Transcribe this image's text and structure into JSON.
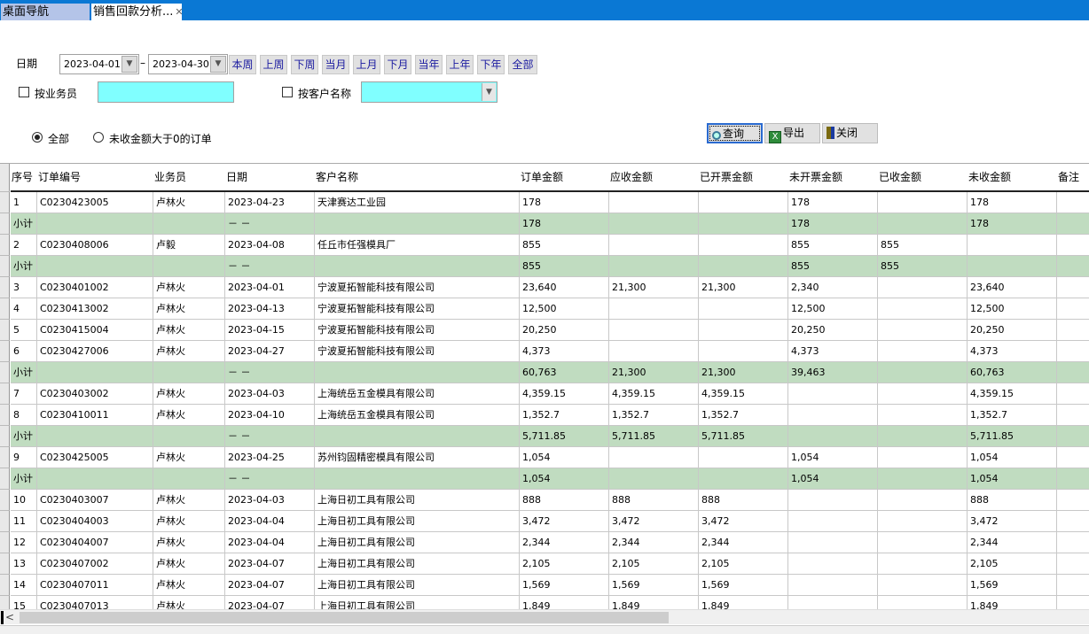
{
  "tabs": [
    {
      "label": "桌面导航"
    },
    {
      "label": "销售回款分析..."
    }
  ],
  "filters": {
    "date_label": "日期",
    "date_from": "2023-04-01",
    "date_to": "2023-04-30",
    "separator": "–",
    "quick_buttons": [
      "本周",
      "上周",
      "下周",
      "当月",
      "上月",
      "下月",
      "当年",
      "上年",
      "下年",
      "全部"
    ],
    "by_salesman_label": "按业务员",
    "salesman_value": "",
    "by_customer_label": "按客户名称",
    "customer_value": "",
    "radio_all": "全部",
    "radio_unpaid": "未收金额大于0的订单",
    "radio_selected": "all",
    "input_color": "#80ffff"
  },
  "toolbar": {
    "query": "查询",
    "export": "导出",
    "close": "关闭"
  },
  "table": {
    "columns": [
      "序号",
      "订单编号",
      "业务员",
      "日期",
      "客户名称",
      "订单金额",
      "应收金额",
      "已开票金额",
      "未开票金额",
      "已收金额",
      "未收金额",
      "备注"
    ],
    "subtotal_color": "#c0dcc0",
    "rows": [
      [
        "1",
        "C0230423005",
        "卢林火",
        "2023-04-23",
        "天津赛达工业园",
        "178",
        "",
        "",
        "178",
        "",
        "178",
        ""
      ],
      [
        "小计",
        "",
        "",
        "－ －",
        "",
        "178",
        "",
        "",
        "178",
        "",
        "178",
        ""
      ],
      [
        "2",
        "C0230408006",
        "卢毅",
        "2023-04-08",
        "任丘市任强模具厂",
        "855",
        "",
        "",
        "855",
        "855",
        "",
        ""
      ],
      [
        "小计",
        "",
        "",
        "－ －",
        "",
        "855",
        "",
        "",
        "855",
        "855",
        "",
        ""
      ],
      [
        "3",
        "C0230401002",
        "卢林火",
        "2023-04-01",
        "宁波夏拓智能科技有限公司",
        "23,640",
        "21,300",
        "21,300",
        "2,340",
        "",
        "23,640",
        ""
      ],
      [
        "4",
        "C0230413002",
        "卢林火",
        "2023-04-13",
        "宁波夏拓智能科技有限公司",
        "12,500",
        "",
        "",
        "12,500",
        "",
        "12,500",
        ""
      ],
      [
        "5",
        "C0230415004",
        "卢林火",
        "2023-04-15",
        "宁波夏拓智能科技有限公司",
        "20,250",
        "",
        "",
        "20,250",
        "",
        "20,250",
        ""
      ],
      [
        "6",
        "C0230427006",
        "卢林火",
        "2023-04-27",
        "宁波夏拓智能科技有限公司",
        "4,373",
        "",
        "",
        "4,373",
        "",
        "4,373",
        ""
      ],
      [
        "小计",
        "",
        "",
        "－ －",
        "",
        "60,763",
        "21,300",
        "21,300",
        "39,463",
        "",
        "60,763",
        ""
      ],
      [
        "7",
        "C0230403002",
        "卢林火",
        "2023-04-03",
        "上海统岳五金模具有限公司",
        "4,359.15",
        "4,359.15",
        "4,359.15",
        "",
        "",
        "4,359.15",
        ""
      ],
      [
        "8",
        "C0230410011",
        "卢林火",
        "2023-04-10",
        "上海统岳五金模具有限公司",
        "1,352.7",
        "1,352.7",
        "1,352.7",
        "",
        "",
        "1,352.7",
        ""
      ],
      [
        "小计",
        "",
        "",
        "－ －",
        "",
        "5,711.85",
        "5,711.85",
        "5,711.85",
        "",
        "",
        "5,711.85",
        ""
      ],
      [
        "9",
        "C0230425005",
        "卢林火",
        "2023-04-25",
        "苏州钧固精密模具有限公司",
        "1,054",
        "",
        "",
        "1,054",
        "",
        "1,054",
        ""
      ],
      [
        "小计",
        "",
        "",
        "－ －",
        "",
        "1,054",
        "",
        "",
        "1,054",
        "",
        "1,054",
        ""
      ],
      [
        "10",
        "C0230403007",
        "卢林火",
        "2023-04-03",
        "上海日初工具有限公司",
        "888",
        "888",
        "888",
        "",
        "",
        "888",
        ""
      ],
      [
        "11",
        "C0230404003",
        "卢林火",
        "2023-04-04",
        "上海日初工具有限公司",
        "3,472",
        "3,472",
        "3,472",
        "",
        "",
        "3,472",
        ""
      ],
      [
        "12",
        "C0230404007",
        "卢林火",
        "2023-04-04",
        "上海日初工具有限公司",
        "2,344",
        "2,344",
        "2,344",
        "",
        "",
        "2,344",
        ""
      ],
      [
        "13",
        "C0230407002",
        "卢林火",
        "2023-04-07",
        "上海日初工具有限公司",
        "2,105",
        "2,105",
        "2,105",
        "",
        "",
        "2,105",
        ""
      ],
      [
        "14",
        "C0230407011",
        "卢林火",
        "2023-04-07",
        "上海日初工具有限公司",
        "1,569",
        "1,569",
        "1,569",
        "",
        "",
        "1,569",
        ""
      ],
      [
        "15",
        "C0230407013",
        "卢林火",
        "2023-04-07",
        "上海日初工具有限公司",
        "1,849",
        "1,849",
        "1,849",
        "",
        "",
        "1,849",
        ""
      ]
    ]
  }
}
